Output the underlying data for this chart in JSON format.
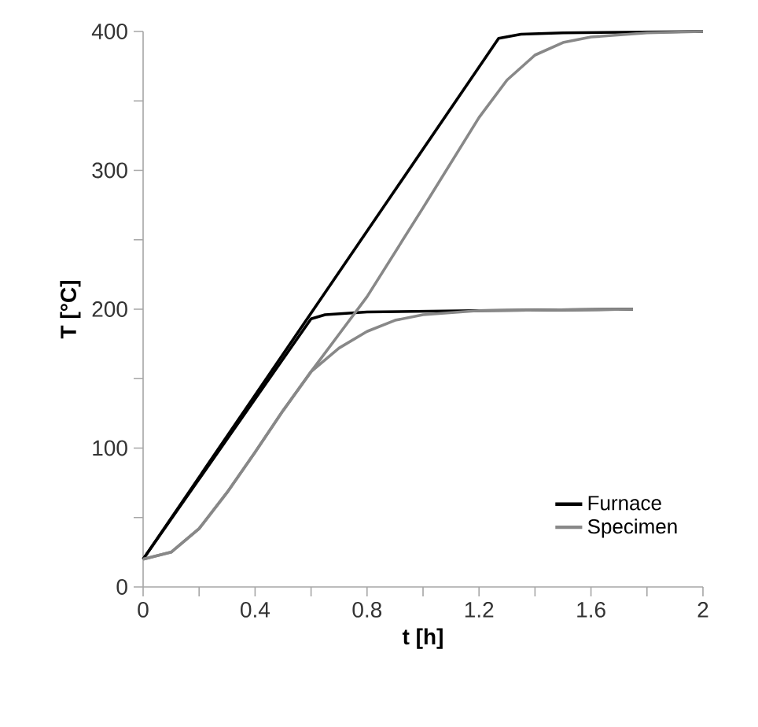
{
  "chart_data": {
    "type": "line",
    "xlabel": "t [h]",
    "ylabel": "T [°C]",
    "xlim": [
      0,
      2
    ],
    "ylim": [
      0,
      400
    ],
    "xticks": [
      0,
      {
        "value": 0.2,
        "label": null
      },
      0.4,
      {
        "value": 0.6,
        "label": null
      },
      0.8,
      {
        "value": 1.0,
        "label": null
      },
      1.2,
      {
        "value": 1.4,
        "label": null
      },
      1.6,
      {
        "value": 1.8,
        "label": null
      },
      2
    ],
    "yticks": [
      0,
      {
        "value": 50,
        "label": null
      },
      100,
      {
        "value": 150,
        "label": null
      },
      200,
      {
        "value": 250,
        "label": null
      },
      300,
      {
        "value": 350,
        "label": null
      },
      400
    ],
    "grid": false,
    "legend": "bottom right",
    "marker": "none",
    "line_style": "solid",
    "series": [
      {
        "name": "Furnace",
        "color": "#000000",
        "x": [
          0,
          1.27,
          1.35,
          1.5,
          2
        ],
        "values": [
          20,
          395,
          398,
          399,
          400
        ]
      },
      {
        "color": "#000000",
        "x": [
          0,
          0.6,
          0.65,
          0.8,
          1.2,
          1.75
        ],
        "values": [
          20,
          193,
          196,
          198,
          199,
          200
        ]
      },
      {
        "name": "Specimen",
        "color": "#888888",
        "x": [
          0,
          0.1,
          0.2,
          0.3,
          0.4,
          0.5,
          0.6,
          0.7,
          0.8,
          1.0,
          1.2,
          1.3,
          1.4,
          1.5,
          1.6,
          1.8,
          2
        ],
        "values": [
          20,
          25,
          42,
          68,
          97,
          127,
          155,
          182,
          209,
          273,
          338,
          365,
          383,
          392,
          396,
          399,
          400
        ]
      },
      {
        "color": "#888888",
        "x": [
          0,
          0.1,
          0.2,
          0.3,
          0.4,
          0.5,
          0.6,
          0.7,
          0.8,
          0.9,
          1.0,
          1.2,
          1.75
        ],
        "values": [
          20,
          25,
          42,
          68,
          97,
          127,
          155,
          172,
          184,
          192,
          196,
          199,
          200
        ]
      }
    ]
  }
}
